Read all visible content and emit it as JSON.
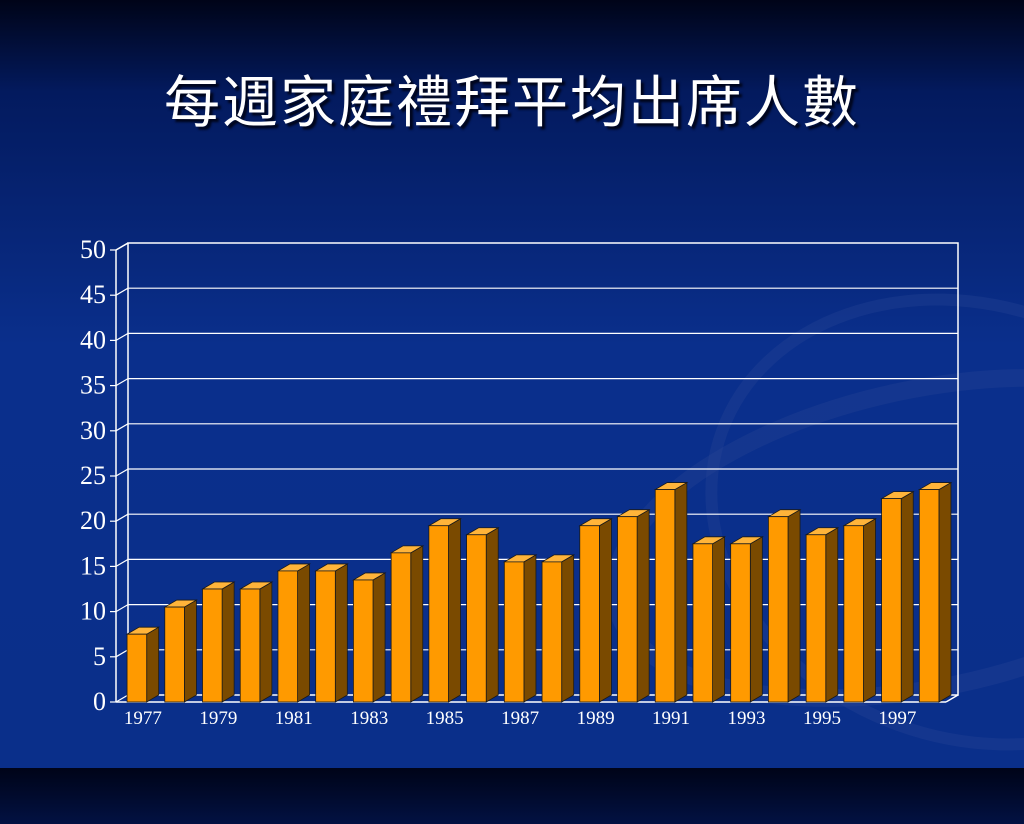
{
  "slide": {
    "title": "每週家庭禮拜平均出席人數"
  },
  "colors": {
    "bar_front": "#ff9a00",
    "bar_side": "#7a4a00",
    "bar_top": "#ffb43a",
    "bar_edge": "#1a1a1a",
    "grid": "#ffffff",
    "text": "#ffffff"
  },
  "chart_data": {
    "type": "bar",
    "categories": [
      "1977",
      "1978",
      "1979",
      "1980",
      "1981",
      "1982",
      "1983",
      "1984",
      "1985",
      "1986",
      "1987",
      "1988",
      "1989",
      "1990",
      "1991",
      "1992",
      "1993",
      "1994",
      "1995",
      "1996",
      "1997",
      "1998"
    ],
    "x_tick_labels": [
      "1977",
      "1979",
      "1981",
      "1983",
      "1985",
      "1987",
      "1989",
      "1991",
      "1993",
      "1995",
      "1997"
    ],
    "values": [
      7.5,
      10.5,
      12.5,
      12.5,
      14.5,
      14.5,
      13.5,
      16.5,
      19.5,
      18.5,
      15.5,
      15.5,
      19.5,
      20.5,
      23.5,
      17.5,
      17.5,
      20.5,
      18.5,
      19.5,
      22.5,
      23.5
    ],
    "y_ticks": [
      "0",
      "5",
      "10",
      "15",
      "20",
      "25",
      "30",
      "35",
      "40",
      "45",
      "50"
    ],
    "ylim": [
      0,
      50
    ],
    "grid": true,
    "style": "3d-bars"
  }
}
